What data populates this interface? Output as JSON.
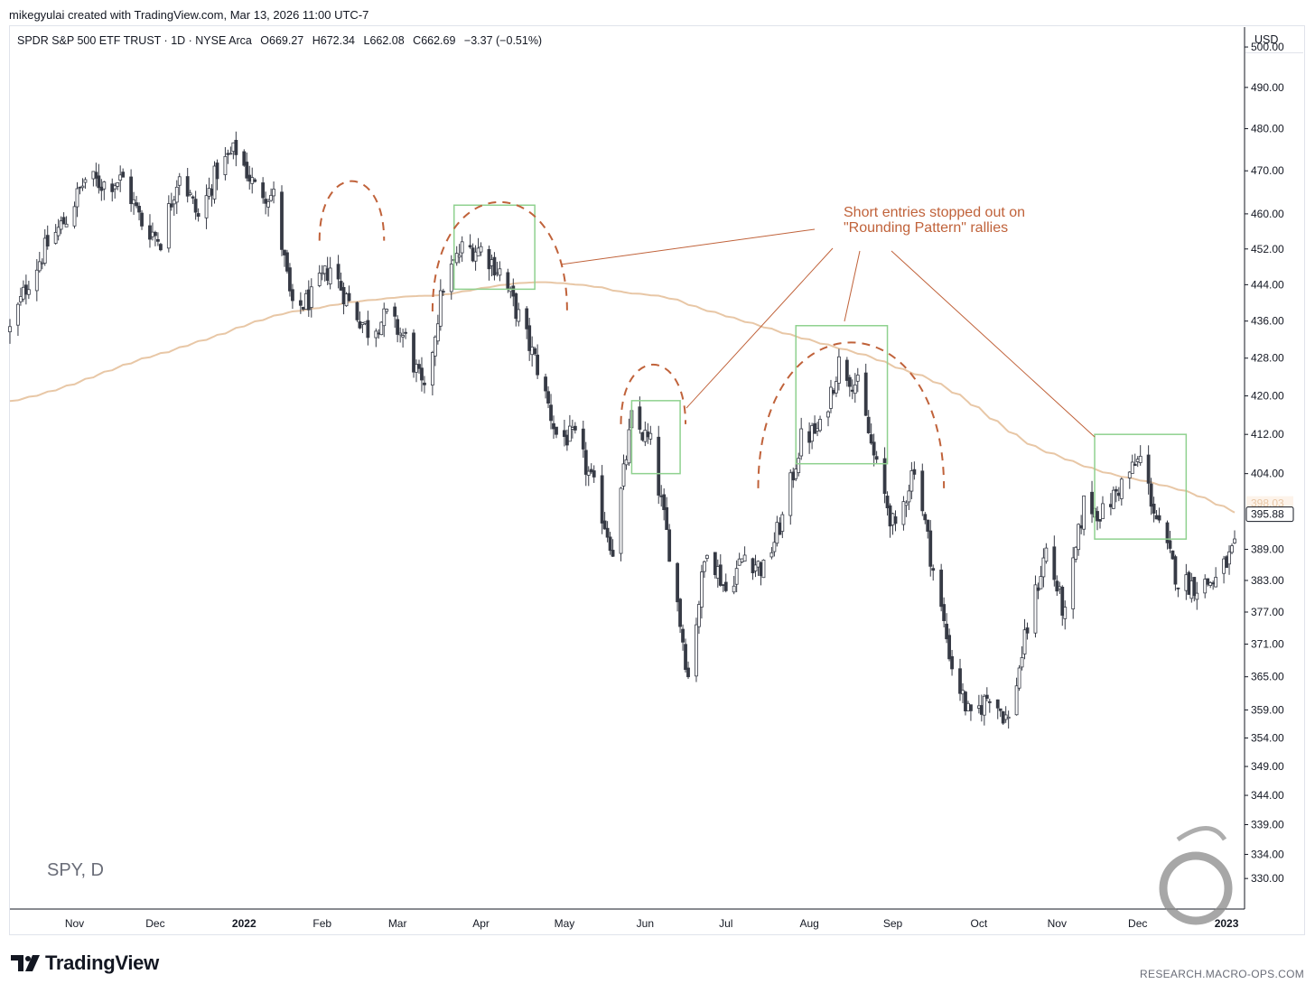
{
  "header": {
    "attribution": "mikegyulai created with TradingView.com, Mar 13, 2026 11:00 UTC-7"
  },
  "legend": {
    "instrument": "SPDR S&P 500 ETF TRUST · 1D · NYSE Arca",
    "open": "O669.27",
    "high": "H672.34",
    "low": "L662.08",
    "close": "C662.69",
    "change": "−3.37 (−0.51%)"
  },
  "currency": "USD",
  "symbol_watermark": "SPY, D",
  "logo_text": "TradingView",
  "site_credit": "RESEARCH.MACRO-OPS.COM",
  "colors": {
    "up_candle_fill": "#ffffff",
    "down_candle_fill": "#363a45",
    "candle_outline": "#363a45",
    "moving_average": "#e8c7a6",
    "annotation": "#c0623a",
    "box": "#8fd18f"
  },
  "chart_data": {
    "type": "candlestick",
    "symbol": "SPY",
    "interval": "1D",
    "y_axis": {
      "range": [
        325,
        505
      ],
      "ticks": [
        "500.00",
        "490.00",
        "480.00",
        "470.00",
        "460.00",
        "452.00",
        "444.00",
        "436.00",
        "428.00",
        "420.00",
        "412.00",
        "404.00",
        "398.03",
        "395.88",
        "389.00",
        "383.00",
        "377.00",
        "371.00",
        "365.00",
        "359.00",
        "354.00",
        "349.00",
        "344.00",
        "339.00",
        "334.00",
        "330.00"
      ],
      "price_labels": [
        {
          "label": "398.03",
          "value": 398.03,
          "style": "moving-average"
        },
        {
          "label": "395.88",
          "value": 395.88,
          "style": "last-price"
        }
      ]
    },
    "x_axis": {
      "labels": [
        {
          "label": "Nov",
          "date": "2021-11-01"
        },
        {
          "label": "Dec",
          "date": "2021-12-01"
        },
        {
          "label": "2022",
          "date": "2022-01-03"
        },
        {
          "label": "Feb",
          "date": "2022-02-01"
        },
        {
          "label": "Mar",
          "date": "2022-03-01"
        },
        {
          "label": "Apr",
          "date": "2022-04-01"
        },
        {
          "label": "May",
          "date": "2022-05-02"
        },
        {
          "label": "Jun",
          "date": "2022-06-01"
        },
        {
          "label": "Jul",
          "date": "2022-07-01"
        },
        {
          "label": "Aug",
          "date": "2022-08-01"
        },
        {
          "label": "Sep",
          "date": "2022-09-01"
        },
        {
          "label": "Oct",
          "date": "2022-10-03"
        },
        {
          "label": "Nov",
          "date": "2022-11-01"
        },
        {
          "label": "Dec",
          "date": "2022-12-01"
        },
        {
          "label": "2023",
          "date": "2023-01-03"
        }
      ],
      "range": [
        "2021-10-08",
        "2023-01-06"
      ]
    },
    "closes": [
      {
        "date": "2021-10-08",
        "close": 434
      },
      {
        "date": "2021-10-15",
        "close": 445
      },
      {
        "date": "2021-10-22",
        "close": 453
      },
      {
        "date": "2021-10-29",
        "close": 459
      },
      {
        "date": "2021-11-05",
        "close": 468
      },
      {
        "date": "2021-11-12",
        "close": 467
      },
      {
        "date": "2021-11-19",
        "close": 468
      },
      {
        "date": "2021-11-26",
        "close": 458
      },
      {
        "date": "2021-12-03",
        "close": 454
      },
      {
        "date": "2021-12-10",
        "close": 470
      },
      {
        "date": "2021-12-17",
        "close": 459
      },
      {
        "date": "2021-12-24",
        "close": 470
      },
      {
        "date": "2021-12-31",
        "close": 475
      },
      {
        "date": "2022-01-07",
        "close": 466
      },
      {
        "date": "2022-01-14",
        "close": 464
      },
      {
        "date": "2022-01-21",
        "close": 438
      },
      {
        "date": "2022-01-28",
        "close": 441
      },
      {
        "date": "2022-02-04",
        "close": 448
      },
      {
        "date": "2022-02-11",
        "close": 440
      },
      {
        "date": "2022-02-18",
        "close": 434
      },
      {
        "date": "2022-02-25",
        "close": 437
      },
      {
        "date": "2022-03-04",
        "close": 432
      },
      {
        "date": "2022-03-11",
        "close": 420
      },
      {
        "date": "2022-03-18",
        "close": 444
      },
      {
        "date": "2022-03-25",
        "close": 452
      },
      {
        "date": "2022-04-01",
        "close": 452
      },
      {
        "date": "2022-04-08",
        "close": 447
      },
      {
        "date": "2022-04-15",
        "close": 437
      },
      {
        "date": "2022-04-22",
        "close": 426
      },
      {
        "date": "2022-04-29",
        "close": 412
      },
      {
        "date": "2022-05-06",
        "close": 411
      },
      {
        "date": "2022-05-13",
        "close": 401
      },
      {
        "date": "2022-05-20",
        "close": 389
      },
      {
        "date": "2022-05-27",
        "close": 415
      },
      {
        "date": "2022-06-03",
        "close": 410
      },
      {
        "date": "2022-06-10",
        "close": 389
      },
      {
        "date": "2022-06-17",
        "close": 365
      },
      {
        "date": "2022-06-24",
        "close": 390
      },
      {
        "date": "2022-07-01",
        "close": 381
      },
      {
        "date": "2022-07-08",
        "close": 388
      },
      {
        "date": "2022-07-15",
        "close": 385
      },
      {
        "date": "2022-07-22",
        "close": 395
      },
      {
        "date": "2022-07-29",
        "close": 411
      },
      {
        "date": "2022-08-05",
        "close": 413
      },
      {
        "date": "2022-08-12",
        "close": 427
      },
      {
        "date": "2022-08-19",
        "close": 422
      },
      {
        "date": "2022-08-26",
        "close": 405
      },
      {
        "date": "2022-09-02",
        "close": 392
      },
      {
        "date": "2022-09-09",
        "close": 406
      },
      {
        "date": "2022-09-16",
        "close": 385
      },
      {
        "date": "2022-09-23",
        "close": 367
      },
      {
        "date": "2022-09-30",
        "close": 357
      },
      {
        "date": "2022-10-07",
        "close": 362
      },
      {
        "date": "2022-10-14",
        "close": 357
      },
      {
        "date": "2022-10-21",
        "close": 374
      },
      {
        "date": "2022-10-28",
        "close": 389
      },
      {
        "date": "2022-11-04",
        "close": 376
      },
      {
        "date": "2022-11-11",
        "close": 398
      },
      {
        "date": "2022-11-18",
        "close": 396
      },
      {
        "date": "2022-11-25",
        "close": 402
      },
      {
        "date": "2022-12-02",
        "close": 407
      },
      {
        "date": "2022-12-09",
        "close": 393
      },
      {
        "date": "2022-12-16",
        "close": 383
      },
      {
        "date": "2022-12-23",
        "close": 382
      },
      {
        "date": "2022-12-30",
        "close": 383
      },
      {
        "date": "2023-01-06",
        "close": 389
      }
    ],
    "moving_average_series": {
      "type": "line"
    },
    "annotations": [
      {
        "text_lines": [
          "Short entries stopped out on",
          "\"Rounding Pattern\" rallies"
        ]
      }
    ],
    "highlight_boxes": [
      {
        "from": "2022-03-22",
        "to": "2022-04-21",
        "price_top": 462,
        "price_bottom": 443
      },
      {
        "from": "2022-05-27",
        "to": "2022-06-14",
        "price_top": 419,
        "price_bottom": 404
      },
      {
        "from": "2022-07-27",
        "to": "2022-08-30",
        "price_top": 435,
        "price_bottom": 406
      },
      {
        "from": "2022-11-15",
        "to": "2022-12-19",
        "price_top": 412,
        "price_bottom": 391
      }
    ],
    "rounding_arcs": [
      {
        "from": "2022-01-31",
        "to": "2022-02-24",
        "peak": 468
      },
      {
        "from": "2022-03-14",
        "to": "2022-05-03",
        "peak": 467
      },
      {
        "from": "2022-05-23",
        "to": "2022-06-16",
        "peak": 427
      },
      {
        "from": "2022-07-13",
        "to": "2022-09-20",
        "peak": 438
      }
    ],
    "grid": false,
    "legend_position": "top-left"
  }
}
